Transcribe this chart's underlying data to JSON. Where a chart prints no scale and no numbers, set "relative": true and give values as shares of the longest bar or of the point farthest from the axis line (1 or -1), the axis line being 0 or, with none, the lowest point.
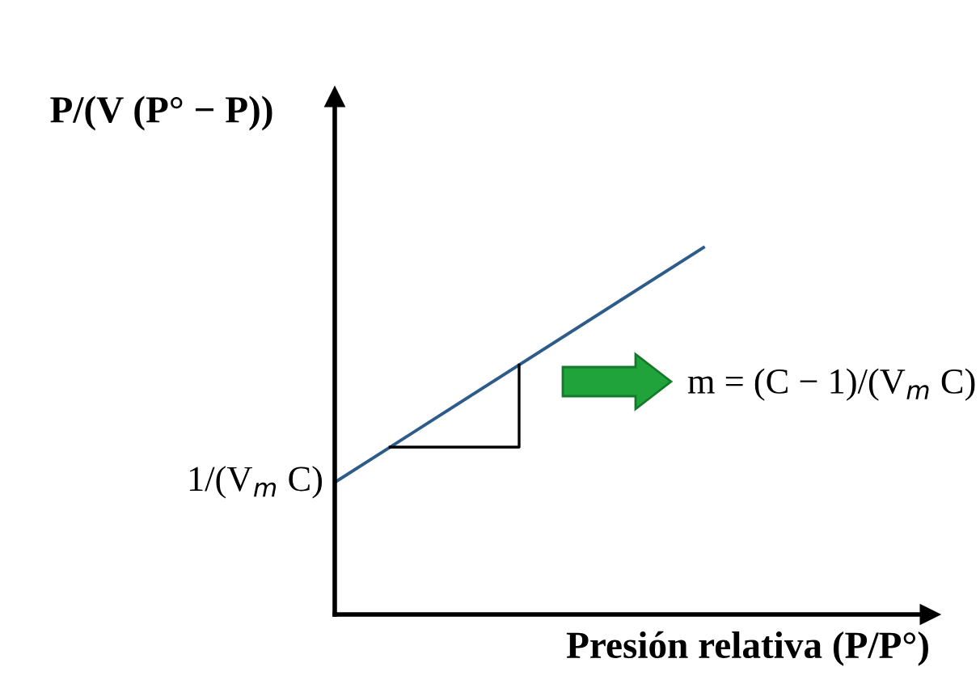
{
  "chart_data": {
    "type": "line",
    "relative": true,
    "categories": [
      null,
      null
    ],
    "series": [
      {
        "color": "#2e5c8a",
        "values": [
          0.36,
          1
        ]
      }
    ],
    "ylabel": "P/(V (P° − P))",
    "xlabel": "Presión relativa (P/P°)",
    "annotations": [
      "1/(V$_{m}$ C)",
      "m = (C − 1)/(V$_{m}$ C)"
    ],
    "grid": false,
    "marker": "none",
    "line_style": "solid"
  }
}
